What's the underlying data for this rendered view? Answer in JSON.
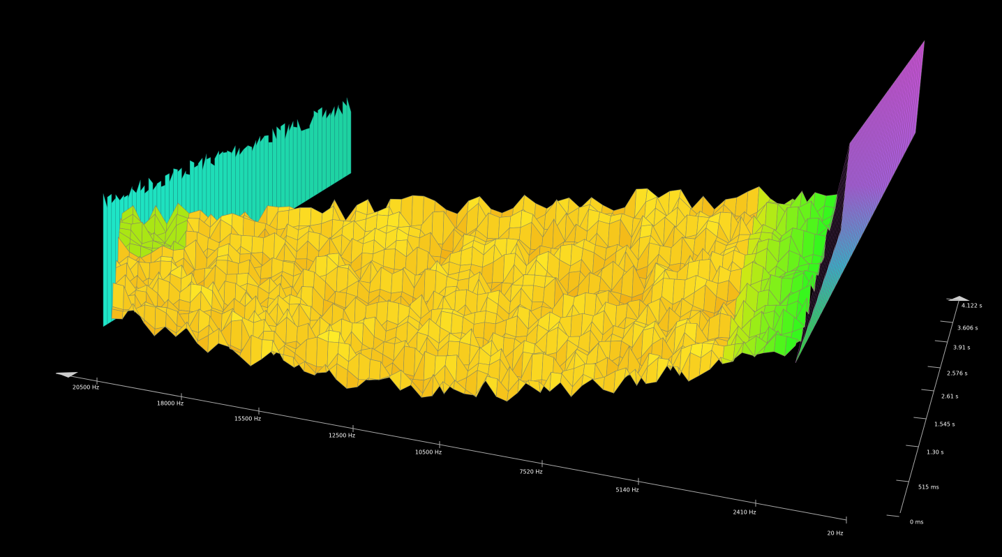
{
  "frequency_axis": {
    "ticks": [
      "20500 Hz",
      "18000 Hz",
      "15500 Hz",
      "12500 Hz",
      "10500 Hz",
      "7520 Hz",
      "5140 Hz",
      "2410 Hz",
      "20 Hz"
    ]
  },
  "time_axis": {
    "ticks": [
      "4.122 s",
      "3.606 s",
      "3.91 s",
      "2.576 s",
      "2.61 s",
      "1.545 s",
      "1.30 s",
      "515 ms",
      "0 ms"
    ]
  }
}
